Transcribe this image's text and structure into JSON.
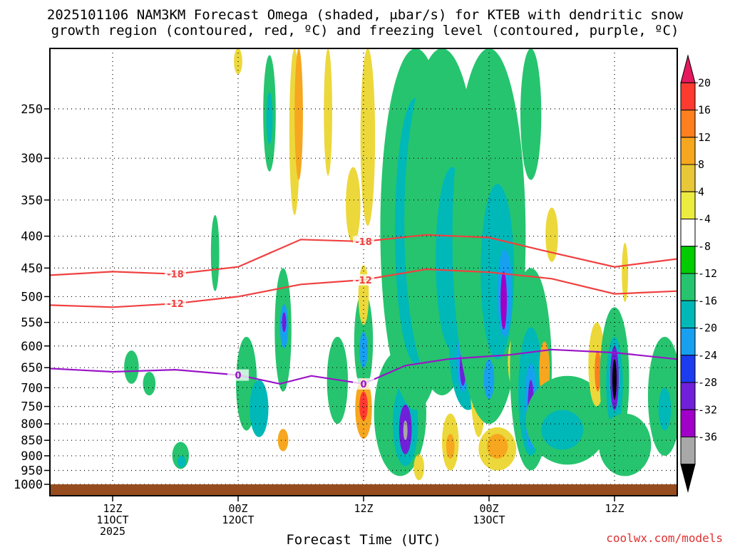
{
  "title_line1": "2025101106 NAM3KM Forecast Omega (shaded, μbar/s) for KTEB with dendritic snow",
  "title_line2": "growth region (contoured, red, ºC) and freezing level (contoured, purple, ºC)",
  "credit": "coolwx.com/models",
  "chart_data": {
    "type": "heatmap",
    "xlabel": "Forecast Time (UTC)",
    "x_ticks": [
      {
        "hour": 6,
        "lines": [
          "12Z",
          "11OCT",
          "2025"
        ]
      },
      {
        "hour": 18,
        "lines": [
          "00Z",
          "12OCT"
        ]
      },
      {
        "hour": 30,
        "lines": [
          "12Z"
        ]
      },
      {
        "hour": 42,
        "lines": [
          "00Z",
          "13OCT"
        ]
      },
      {
        "hour": 54,
        "lines": [
          "12Z"
        ]
      }
    ],
    "xlim": [
      0,
      60
    ],
    "y_ticks": [
      250,
      300,
      350,
      400,
      450,
      500,
      550,
      600,
      650,
      700,
      750,
      800,
      850,
      900,
      950,
      1000
    ],
    "ylim_hPa": [
      200,
      1000
    ],
    "grid": true,
    "colorbar": {
      "labels": [
        "20",
        "16",
        "12",
        "8",
        "4",
        "-4",
        "-8",
        "-12",
        "-16",
        "-20",
        "-24",
        "-28",
        "-32",
        "-36"
      ],
      "colors": [
        "#e6195f",
        "#ff3b30",
        "#ff7f1e",
        "#f6a71f",
        "#e8c838",
        "#ecec40",
        "#ffffff",
        "#00cc00",
        "#26c46e",
        "#00b8b8",
        "#18a0f0",
        "#1c3cf0",
        "#7020d8",
        "#a000c8",
        "#a8a8a8",
        "#000000"
      ]
    },
    "contours": [
      {
        "label": "-18",
        "color": "#f04040",
        "points": [
          [
            0,
            462
          ],
          [
            6,
            456
          ],
          [
            12,
            460
          ],
          [
            18,
            448
          ],
          [
            24,
            405
          ],
          [
            30,
            408
          ],
          [
            36,
            398
          ],
          [
            42,
            402
          ],
          [
            48,
            425
          ],
          [
            54,
            448
          ],
          [
            60,
            435
          ]
        ]
      },
      {
        "label": "-12",
        "color": "#f04040",
        "points": [
          [
            0,
            516
          ],
          [
            6,
            520
          ],
          [
            12,
            513
          ],
          [
            18,
            500
          ],
          [
            24,
            478
          ],
          [
            30,
            470
          ],
          [
            36,
            452
          ],
          [
            42,
            457
          ],
          [
            48,
            468
          ],
          [
            54,
            495
          ],
          [
            60,
            490
          ]
        ]
      },
      {
        "label": "0",
        "color": "#9a14c8",
        "points": [
          [
            0,
            652
          ],
          [
            6,
            660
          ],
          [
            12,
            655
          ],
          [
            18,
            668
          ],
          [
            22,
            690
          ],
          [
            25,
            670
          ],
          [
            30,
            690
          ],
          [
            34,
            645
          ],
          [
            38,
            630
          ],
          [
            44,
            620
          ],
          [
            48,
            608
          ],
          [
            54,
            615
          ],
          [
            60,
            630
          ]
        ]
      }
    ],
    "shaded_cells": [
      {
        "x": 7.8,
        "p": 650,
        "w": 0.7,
        "h": 80,
        "v": -8
      },
      {
        "x": 9.5,
        "p": 690,
        "w": 0.6,
        "h": 60,
        "v": -8
      },
      {
        "x": 12.5,
        "p": 900,
        "w": 0.8,
        "h": 90,
        "v": -8
      },
      {
        "x": 12.6,
        "p": 920,
        "w": 0.4,
        "h": 40,
        "v": -12
      },
      {
        "x": 15.8,
        "p": 430,
        "w": 0.4,
        "h": 120,
        "v": -8
      },
      {
        "x": 18.8,
        "p": 700,
        "w": 1.0,
        "h": 240,
        "v": -8
      },
      {
        "x": 20.0,
        "p": 760,
        "w": 0.9,
        "h": 160,
        "v": -12
      },
      {
        "x": 22.3,
        "p": 580,
        "w": 0.8,
        "h": 260,
        "v": -8
      },
      {
        "x": 22.4,
        "p": 560,
        "w": 0.4,
        "h": 90,
        "v": -16
      },
      {
        "x": 22.4,
        "p": 550,
        "w": 0.2,
        "h": 40,
        "v": -24
      },
      {
        "x": 22.3,
        "p": 850,
        "w": 0.5,
        "h": 70,
        "v": 8
      },
      {
        "x": 21.0,
        "p": 260,
        "w": 0.6,
        "h": 110,
        "v": -8
      },
      {
        "x": 21.0,
        "p": 260,
        "w": 0.3,
        "h": 50,
        "v": -12
      },
      {
        "x": 23.4,
        "p": 280,
        "w": 0.5,
        "h": 180,
        "v": 4
      },
      {
        "x": 18.0,
        "p": 180,
        "w": 0.4,
        "h": 80,
        "v": 4
      },
      {
        "x": 23.8,
        "p": 200,
        "w": 0.4,
        "h": 250,
        "v": 8
      },
      {
        "x": 26.6,
        "p": 230,
        "w": 0.4,
        "h": 180,
        "v": 4
      },
      {
        "x": 27.5,
        "p": 690,
        "w": 1.0,
        "h": 220,
        "v": -8
      },
      {
        "x": 29.0,
        "p": 360,
        "w": 0.7,
        "h": 100,
        "v": 4
      },
      {
        "x": 30.4,
        "p": 260,
        "w": 0.7,
        "h": 250,
        "v": 4
      },
      {
        "x": 30.0,
        "p": 600,
        "w": 0.9,
        "h": 220,
        "v": -8
      },
      {
        "x": 30.0,
        "p": 610,
        "w": 0.4,
        "h": 80,
        "v": -16
      },
      {
        "x": 30.0,
        "p": 760,
        "w": 0.8,
        "h": 170,
        "v": 8
      },
      {
        "x": 30.0,
        "p": 750,
        "w": 0.4,
        "h": 80,
        "v": 16
      },
      {
        "x": 30.0,
        "p": 500,
        "w": 0.5,
        "h": 110,
        "v": 4
      },
      {
        "x": 33.5,
        "p": 790,
        "w": 2.5,
        "h": 360,
        "v": -8
      },
      {
        "x": 34.0,
        "p": 810,
        "w": 1.2,
        "h": 250,
        "v": -12
      },
      {
        "x": 34.0,
        "p": 820,
        "w": 0.6,
        "h": 150,
        "v": -24
      },
      {
        "x": 34.0,
        "p": 820,
        "w": 0.2,
        "h": 60,
        "v": -32
      },
      {
        "x": 33.2,
        "p": 520,
        "w": 0.8,
        "h": 110,
        "v": 4
      },
      {
        "x": 35.0,
        "p": 470,
        "w": 3.4,
        "h": 580,
        "v": -8
      },
      {
        "x": 35.0,
        "p": 440,
        "w": 2.0,
        "h": 400,
        "v": -12
      },
      {
        "x": 35.0,
        "p": 380,
        "w": 0.6,
        "h": 130,
        "v": -16
      },
      {
        "x": 35.0,
        "p": 380,
        "w": 0.3,
        "h": 60,
        "v": -24
      },
      {
        "x": 35.3,
        "p": 940,
        "w": 0.5,
        "h": 90,
        "v": 4
      },
      {
        "x": 37.5,
        "p": 410,
        "w": 3.6,
        "h": 620,
        "v": -8
      },
      {
        "x": 38.5,
        "p": 460,
        "w": 1.6,
        "h": 300,
        "v": -12
      },
      {
        "x": 40.0,
        "p": 620,
        "w": 1.8,
        "h": 280,
        "v": -12
      },
      {
        "x": 39.5,
        "p": 640,
        "w": 0.6,
        "h": 140,
        "v": -16
      },
      {
        "x": 39.5,
        "p": 650,
        "w": 0.3,
        "h": 90,
        "v": -24
      },
      {
        "x": 38.3,
        "p": 860,
        "w": 0.8,
        "h": 180,
        "v": 4
      },
      {
        "x": 38.3,
        "p": 870,
        "w": 0.4,
        "h": 80,
        "v": 8
      },
      {
        "x": 41.0,
        "p": 650,
        "w": 0.9,
        "h": 380,
        "v": 4
      },
      {
        "x": 42.0,
        "p": 450,
        "w": 3.5,
        "h": 700,
        "v": -8
      },
      {
        "x": 42.8,
        "p": 480,
        "w": 1.6,
        "h": 300,
        "v": -12
      },
      {
        "x": 43.5,
        "p": 500,
        "w": 0.7,
        "h": 160,
        "v": -16
      },
      {
        "x": 43.4,
        "p": 510,
        "w": 0.3,
        "h": 110,
        "v": -28
      },
      {
        "x": 42.8,
        "p": 880,
        "w": 1.8,
        "h": 140,
        "v": 4
      },
      {
        "x": 42.8,
        "p": 870,
        "w": 1.0,
        "h": 80,
        "v": 8
      },
      {
        "x": 42.0,
        "p": 680,
        "w": 0.5,
        "h": 100,
        "v": -16
      },
      {
        "x": 44.4,
        "p": 640,
        "w": 0.6,
        "h": 120,
        "v": 4
      },
      {
        "x": 46.0,
        "p": 250,
        "w": 1.0,
        "h": 150,
        "v": -8
      },
      {
        "x": 46.0,
        "p": 700,
        "w": 2.0,
        "h": 500,
        "v": -8
      },
      {
        "x": 46.0,
        "p": 730,
        "w": 1.2,
        "h": 340,
        "v": -12
      },
      {
        "x": 46.0,
        "p": 760,
        "w": 0.6,
        "h": 240,
        "v": -16
      },
      {
        "x": 46.0,
        "p": 760,
        "w": 0.3,
        "h": 160,
        "v": -24
      },
      {
        "x": 47.3,
        "p": 660,
        "w": 0.5,
        "h": 140,
        "v": 8
      },
      {
        "x": 48.0,
        "p": 400,
        "w": 0.6,
        "h": 80,
        "v": 4
      },
      {
        "x": 49.5,
        "p": 800,
        "w": 4.0,
        "h": 260,
        "v": -8
      },
      {
        "x": 49.0,
        "p": 820,
        "w": 2.0,
        "h": 120,
        "v": -12
      },
      {
        "x": 52.3,
        "p": 650,
        "w": 0.8,
        "h": 200,
        "v": 4
      },
      {
        "x": 52.4,
        "p": 660,
        "w": 0.3,
        "h": 100,
        "v": 12
      },
      {
        "x": 54.0,
        "p": 700,
        "w": 1.4,
        "h": 360,
        "v": -8
      },
      {
        "x": 54.0,
        "p": 700,
        "w": 0.8,
        "h": 240,
        "v": -12
      },
      {
        "x": 54.0,
        "p": 680,
        "w": 0.4,
        "h": 160,
        "v": -24
      },
      {
        "x": 54.0,
        "p": 680,
        "w": 0.2,
        "h": 100,
        "v": -36
      },
      {
        "x": 55.0,
        "p": 870,
        "w": 2.5,
        "h": 200,
        "v": -8
      },
      {
        "x": 58.8,
        "p": 740,
        "w": 1.6,
        "h": 320,
        "v": -8
      },
      {
        "x": 58.8,
        "p": 760,
        "w": 0.6,
        "h": 120,
        "v": -12
      },
      {
        "x": 55.0,
        "p": 460,
        "w": 0.3,
        "h": 100,
        "v": 4
      }
    ]
  }
}
